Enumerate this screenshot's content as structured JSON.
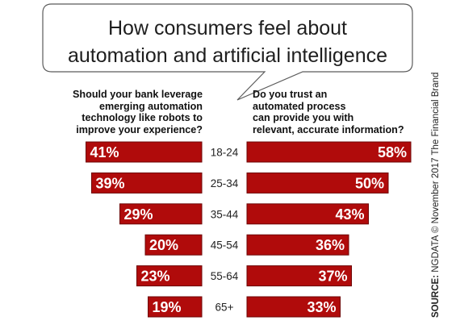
{
  "title": {
    "line1": "How consumers feel about",
    "line2": "automation and artificial intelligence"
  },
  "questions": {
    "left": [
      "Should your bank leverage",
      "emerging automation",
      "technology like robots to",
      "improve your experience?"
    ],
    "right": [
      "Do you trust an",
      "automated process",
      "can provide you with",
      "relevant, accurate information?"
    ]
  },
  "source": {
    "label": "SOURCE:",
    "text": "NGDATA © November 2017 The Financial Brand"
  },
  "colors": {
    "bar": "#b00b0b",
    "bar_border": "#6e0606",
    "bar_text": "#ffffff"
  },
  "chart_data": {
    "type": "bar",
    "orientation": "horizontal-butterfly",
    "categories": [
      "18-24",
      "25-34",
      "35-44",
      "45-54",
      "55-64",
      "65+"
    ],
    "series": [
      {
        "values": [
          41,
          39,
          29,
          20,
          23,
          19
        ],
        "labels": [
          "41%",
          "39%",
          "29%",
          "20%",
          "23%",
          "19%"
        ]
      },
      {
        "values": [
          58,
          50,
          43,
          36,
          37,
          33
        ],
        "labels": [
          "58%",
          "50%",
          "43%",
          "36%",
          "37%",
          "33%"
        ]
      }
    ],
    "unit": "%"
  }
}
